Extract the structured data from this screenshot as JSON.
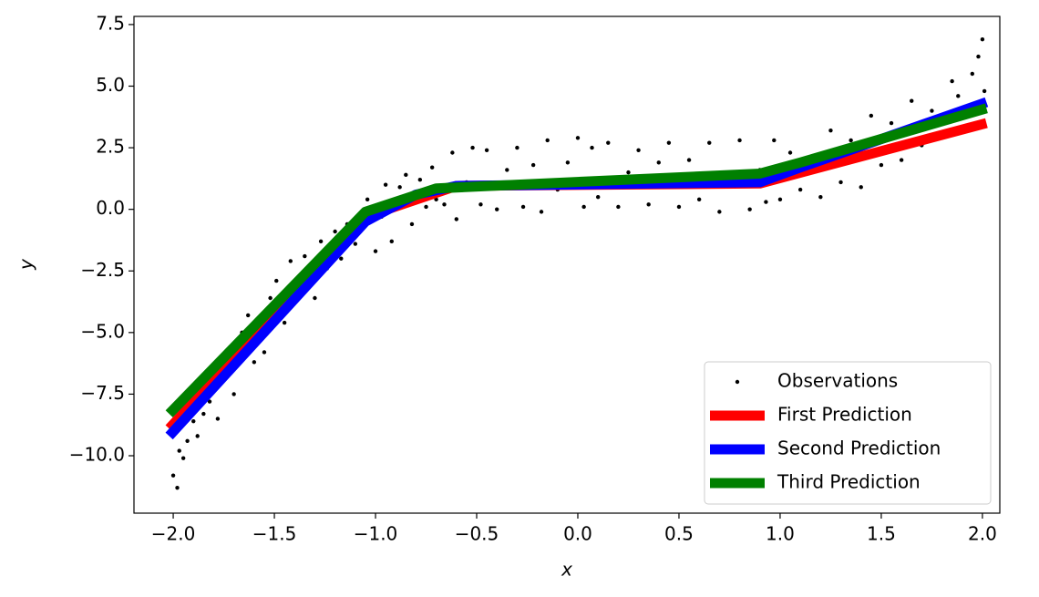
{
  "chart_data": {
    "type": "line",
    "x_label": "x",
    "y_label": "y",
    "xlim": [
      -2.194,
      2.086
    ],
    "ylim": [
      -12.33,
      7.83
    ],
    "xticks": [
      {
        "value": -2.0,
        "label": "−2.0"
      },
      {
        "value": -1.5,
        "label": "−1.5"
      },
      {
        "value": -1.0,
        "label": "−1.0"
      },
      {
        "value": -0.5,
        "label": "−0.5"
      },
      {
        "value": 0.0,
        "label": "0.0"
      },
      {
        "value": 0.5,
        "label": "0.5"
      },
      {
        "value": 1.0,
        "label": "1.0"
      },
      {
        "value": 1.5,
        "label": "1.5"
      },
      {
        "value": 2.0,
        "label": "2.0"
      }
    ],
    "yticks": [
      {
        "value": -10.0,
        "label": "−10.0"
      },
      {
        "value": -7.5,
        "label": "−7.5"
      },
      {
        "value": -5.0,
        "label": "−5.0"
      },
      {
        "value": -2.5,
        "label": "−2.5"
      },
      {
        "value": 0.0,
        "label": "0.0"
      },
      {
        "value": 2.5,
        "label": "2.5"
      },
      {
        "value": 5.0,
        "label": "5.0"
      },
      {
        "value": 7.5,
        "label": "7.5"
      }
    ],
    "legend": "lower right",
    "series": [
      {
        "name": "Observations",
        "type": "scatter",
        "color": "#000000",
        "x": [
          -2.0,
          -1.98,
          -1.97,
          -1.95,
          -1.93,
          -1.9,
          -1.88,
          -1.85,
          -1.82,
          -1.78,
          -1.75,
          -1.72,
          -1.7,
          -1.66,
          -1.63,
          -1.6,
          -1.55,
          -1.52,
          -1.49,
          -1.45,
          -1.42,
          -1.38,
          -1.35,
          -1.3,
          -1.27,
          -1.24,
          -1.2,
          -1.17,
          -1.14,
          -1.1,
          -1.07,
          -1.04,
          -1.0,
          -0.97,
          -0.95,
          -0.92,
          -0.88,
          -0.85,
          -0.82,
          -0.78,
          -0.75,
          -0.72,
          -0.7,
          -0.66,
          -0.62,
          -0.6,
          -0.55,
          -0.52,
          -0.48,
          -0.45,
          -0.4,
          -0.35,
          -0.3,
          -0.27,
          -0.22,
          -0.18,
          -0.15,
          -0.1,
          -0.05,
          0.0,
          0.03,
          0.07,
          0.1,
          0.15,
          0.2,
          0.25,
          0.3,
          0.35,
          0.4,
          0.45,
          0.5,
          0.55,
          0.6,
          0.65,
          0.7,
          0.75,
          0.8,
          0.85,
          0.9,
          0.93,
          0.97,
          1.0,
          1.05,
          1.1,
          1.15,
          1.2,
          1.25,
          1.3,
          1.35,
          1.4,
          1.45,
          1.5,
          1.55,
          1.6,
          1.65,
          1.7,
          1.75,
          1.8,
          1.85,
          1.88,
          1.92,
          1.95,
          1.98,
          2.0,
          2.01
        ],
        "values": [
          -10.8,
          -11.3,
          -9.8,
          -10.1,
          -9.4,
          -8.6,
          -9.2,
          -8.3,
          -7.8,
          -8.5,
          -6.9,
          -5.6,
          -7.5,
          -5.0,
          -4.3,
          -6.2,
          -5.8,
          -3.6,
          -2.9,
          -4.6,
          -2.1,
          -3.4,
          -1.9,
          -3.6,
          -1.3,
          -2.4,
          -0.9,
          -2.0,
          -0.6,
          -1.4,
          -0.4,
          0.4,
          -1.7,
          -0.3,
          1.0,
          -1.3,
          0.9,
          1.4,
          -0.6,
          1.2,
          0.1,
          1.7,
          0.4,
          0.2,
          2.3,
          -0.4,
          1.1,
          2.5,
          0.2,
          2.4,
          0.0,
          1.6,
          2.5,
          0.1,
          1.8,
          -0.1,
          2.8,
          0.8,
          1.9,
          2.9,
          0.1,
          2.5,
          0.5,
          2.7,
          0.1,
          1.5,
          2.4,
          0.2,
          1.9,
          2.7,
          0.1,
          2.0,
          0.4,
          2.7,
          -0.1,
          1.2,
          2.8,
          0.0,
          1.6,
          0.3,
          2.8,
          0.4,
          2.3,
          0.8,
          2.1,
          0.5,
          3.2,
          1.1,
          2.8,
          0.9,
          3.8,
          1.8,
          3.5,
          2.0,
          4.4,
          2.6,
          4.0,
          2.9,
          5.2,
          4.6,
          3.4,
          5.5,
          6.2,
          6.9,
          4.8
        ]
      },
      {
        "name": "First Prediction",
        "color": "#ff0000",
        "x": [
          -2.02,
          -1.05,
          -0.6,
          0.9,
          2.02
        ],
        "values": [
          -8.9,
          -0.3,
          0.95,
          1.05,
          3.5
        ]
      },
      {
        "name": "Second Prediction",
        "color": "#0000ff",
        "x": [
          -2.02,
          -1.05,
          -0.8,
          -0.6,
          0.9,
          1.1,
          2.02
        ],
        "values": [
          -9.2,
          -0.5,
          0.6,
          0.95,
          1.1,
          1.7,
          4.35
        ]
      },
      {
        "name": "Third Prediction",
        "color": "#008000",
        "x": [
          -2.02,
          -1.05,
          -0.7,
          0.9,
          1.1,
          2.02
        ],
        "values": [
          -8.3,
          -0.1,
          0.85,
          1.45,
          1.9,
          4.1
        ]
      }
    ]
  }
}
